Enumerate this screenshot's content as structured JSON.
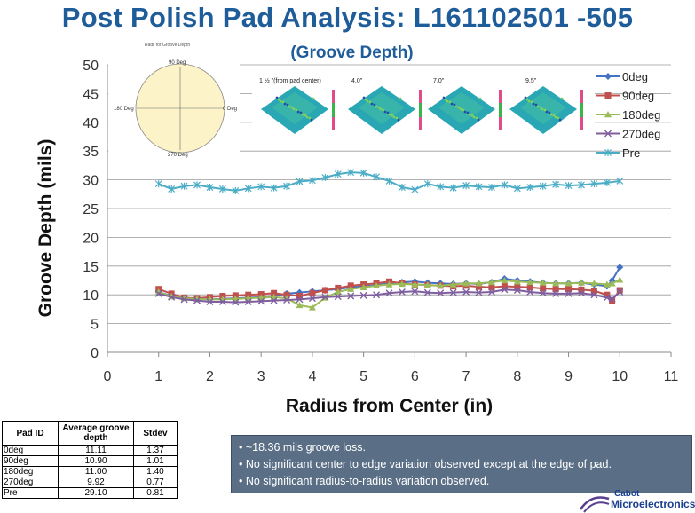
{
  "title": "Post Polish Pad Analysis: L161102501 -505",
  "subtitle": "(Groove Depth)",
  "chart_data": {
    "type": "line",
    "xlabel": "Radius from Center (in)",
    "ylabel": "Groove Depth (mils)",
    "xlim": [
      0,
      11
    ],
    "ylim": [
      0,
      50
    ],
    "xticks": [
      "0",
      "1",
      "2",
      "3",
      "4",
      "5",
      "6",
      "7",
      "8",
      "9",
      "10",
      "11"
    ],
    "yticks": [
      "0",
      "5",
      "10",
      "15",
      "20",
      "25",
      "30",
      "35",
      "40",
      "45",
      "50"
    ],
    "grid": "horizontal",
    "legend_position": "top-right",
    "series": [
      {
        "name": "0deg",
        "color": "#4472c4",
        "marker": "diamond",
        "x": [
          1,
          1.25,
          1.5,
          1.75,
          2,
          2.25,
          2.5,
          2.75,
          3,
          3.25,
          3.5,
          3.75,
          4,
          4.25,
          4.5,
          4.75,
          5,
          5.25,
          5.5,
          5.75,
          6,
          6.25,
          6.5,
          6.75,
          7,
          7.25,
          7.5,
          7.75,
          8,
          8.25,
          8.5,
          8.75,
          9,
          9.25,
          9.5,
          9.75,
          9.85,
          10
        ],
        "y": [
          10.5,
          9.8,
          9.5,
          9.3,
          9.2,
          9.3,
          9.4,
          9.5,
          9.6,
          9.8,
          10.2,
          10.4,
          10.6,
          10.8,
          11.0,
          11.3,
          11.5,
          11.7,
          12.0,
          12.2,
          12.3,
          12.1,
          12.0,
          11.9,
          12.0,
          11.9,
          12.2,
          12.8,
          12.5,
          12.3,
          12.1,
          12.0,
          12.0,
          12.1,
          11.8,
          11.5,
          12.5,
          14.8
        ]
      },
      {
        "name": "90deg",
        "color": "#c0504d",
        "marker": "square",
        "x": [
          1,
          1.25,
          1.5,
          1.75,
          2,
          2.25,
          2.5,
          2.75,
          3,
          3.25,
          3.5,
          3.75,
          4,
          4.25,
          4.5,
          4.75,
          5,
          5.25,
          5.5,
          5.75,
          6,
          6.25,
          6.5,
          6.75,
          7,
          7.25,
          7.5,
          7.75,
          8,
          8.25,
          8.5,
          8.75,
          9,
          9.25,
          9.5,
          9.75,
          9.85,
          10
        ],
        "y": [
          11.0,
          10.2,
          9.5,
          9.4,
          9.6,
          9.8,
          9.9,
          10.0,
          10.1,
          10.3,
          10.0,
          9.8,
          10.3,
          10.8,
          11.2,
          11.6,
          11.8,
          12.0,
          12.3,
          12.0,
          11.8,
          11.7,
          11.6,
          11.5,
          11.6,
          11.4,
          11.3,
          11.5,
          11.4,
          11.3,
          11.1,
          11.0,
          11.0,
          10.9,
          10.7,
          10.0,
          9.0,
          10.8
        ]
      },
      {
        "name": "180deg",
        "color": "#9bbb59",
        "marker": "triangle",
        "x": [
          1,
          1.25,
          1.5,
          1.75,
          2,
          2.25,
          2.5,
          2.75,
          3,
          3.25,
          3.5,
          3.75,
          4,
          4.25,
          4.5,
          4.75,
          5,
          5.25,
          5.5,
          5.75,
          6,
          6.25,
          6.5,
          6.75,
          7,
          7.25,
          7.5,
          7.75,
          8,
          8.25,
          8.5,
          8.75,
          9,
          9.25,
          9.5,
          9.75,
          9.85,
          10
        ],
        "y": [
          10.5,
          9.7,
          9.4,
          9.3,
          9.2,
          9.2,
          9.3,
          9.4,
          9.5,
          9.6,
          9.4,
          8.2,
          7.8,
          9.5,
          10.5,
          11.0,
          11.3,
          11.6,
          11.8,
          11.9,
          11.8,
          11.7,
          11.6,
          11.8,
          12.0,
          12.0,
          12.2,
          12.5,
          12.3,
          12.2,
          12.1,
          12.0,
          12.0,
          12.1,
          12.0,
          11.8,
          12.0,
          12.6
        ]
      },
      {
        "name": "270deg",
        "color": "#7f5f9f",
        "marker": "x",
        "x": [
          1,
          1.25,
          1.5,
          1.75,
          2,
          2.25,
          2.5,
          2.75,
          3,
          3.25,
          3.5,
          3.75,
          4,
          4.25,
          4.5,
          4.75,
          5,
          5.25,
          5.5,
          5.75,
          6,
          6.25,
          6.5,
          6.75,
          7,
          7.25,
          7.5,
          7.75,
          8,
          8.25,
          8.5,
          8.75,
          9,
          9.25,
          9.5,
          9.75,
          9.85,
          10
        ],
        "y": [
          10.2,
          9.6,
          9.2,
          9.0,
          8.8,
          8.8,
          8.7,
          8.8,
          8.9,
          9.0,
          9.1,
          9.2,
          9.4,
          9.6,
          9.7,
          9.8,
          9.9,
          10.0,
          10.3,
          10.5,
          10.6,
          10.4,
          10.3,
          10.4,
          10.5,
          10.4,
          10.5,
          10.9,
          10.8,
          10.5,
          10.3,
          10.2,
          10.2,
          10.3,
          10.0,
          9.5,
          9.3,
          10.5
        ]
      },
      {
        "name": "Pre",
        "color": "#4bacc6",
        "marker": "star",
        "x": [
          1,
          1.25,
          1.5,
          1.75,
          2,
          2.25,
          2.5,
          2.75,
          3,
          3.25,
          3.5,
          3.75,
          4,
          4.25,
          4.5,
          4.75,
          5,
          5.25,
          5.5,
          5.75,
          6,
          6.25,
          6.5,
          6.75,
          7,
          7.25,
          7.5,
          7.75,
          8,
          8.25,
          8.5,
          8.75,
          9,
          9.25,
          9.5,
          9.75,
          10
        ],
        "y": [
          29.3,
          28.4,
          28.9,
          29.1,
          28.7,
          28.4,
          28.1,
          28.5,
          28.8,
          28.6,
          28.9,
          29.7,
          29.9,
          30.4,
          31.0,
          31.3,
          31.2,
          30.5,
          29.8,
          28.7,
          28.3,
          29.3,
          28.8,
          28.6,
          29.0,
          28.8,
          28.7,
          29.1,
          28.5,
          28.7,
          28.9,
          29.2,
          29.0,
          29.1,
          29.3,
          29.5,
          29.8
        ]
      }
    ]
  },
  "inset_diagram": {
    "title": "Radii for Groove Depth",
    "top_label": "90 Deg",
    "left_label": "180 Deg",
    "right_label": "0 Deg",
    "bottom_label": "270 Deg"
  },
  "thumbnails": [
    {
      "label": "1 ½ \"(from pad center)"
    },
    {
      "label": "4.0\""
    },
    {
      "label": "7.0\""
    },
    {
      "label": "9.5\""
    }
  ],
  "table": {
    "headers": [
      "Pad ID",
      "Average groove depth",
      "Stdev"
    ],
    "rows": [
      [
        "0deg",
        "11.11",
        "1.37"
      ],
      [
        "90deg",
        "10.90",
        "1.01"
      ],
      [
        "180deg",
        "11.00",
        "1.40"
      ],
      [
        "270deg",
        "9.92",
        "0.77"
      ],
      [
        "Pre",
        "29.10",
        "0.81"
      ]
    ]
  },
  "notes": [
    "• ~18.36 mils groove loss.",
    "• No significant center to edge variation observed except at the edge of pad.",
    "• No significant radius-to-radius variation  observed."
  ],
  "logo": {
    "line1": "Cabot",
    "line2": "Microelectronics"
  }
}
